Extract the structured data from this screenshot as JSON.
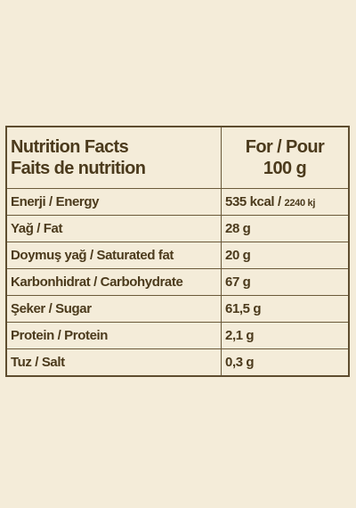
{
  "table": {
    "header": {
      "left": [
        "Nutrition Facts",
        "Faits de nutrition"
      ],
      "right": [
        "For / Pour",
        "100 g"
      ]
    },
    "rows": [
      {
        "name": "Enerji / Energy",
        "value": "535 kcal /",
        "value_small": "2240 kj"
      },
      {
        "name": "Yağ / Fat",
        "value": "28 g"
      },
      {
        "name": "Doymuş yağ / Saturated fat",
        "value": "20 g"
      },
      {
        "name": "Karbonhidrat / Carbohydrate",
        "value": "67 g"
      },
      {
        "name": "Şeker / Sugar",
        "value": "61,5 g"
      },
      {
        "name": "Protein / Protein",
        "value": "2,1 g"
      },
      {
        "name": "Tuz / Salt",
        "value": "0,3 g"
      }
    ]
  }
}
